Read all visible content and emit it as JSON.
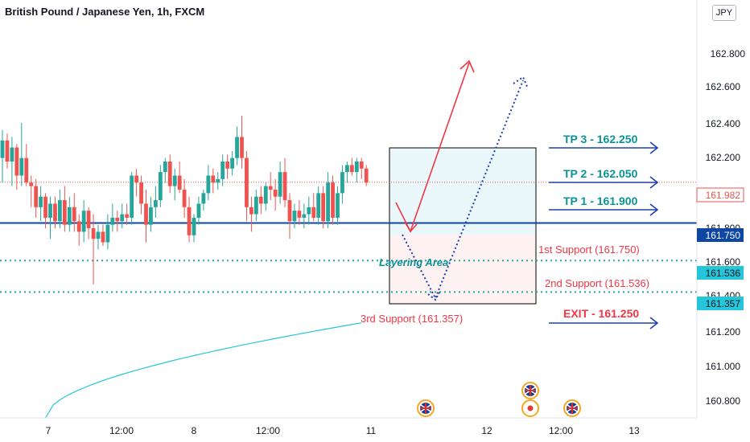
{
  "title": "British Pound / Japanese Yen, 1h, FXCM",
  "currency_button": "JPY",
  "colors": {
    "bull": "#26a69a",
    "bear": "#ef5350",
    "ma": "#26c6da",
    "support_line": "#0d47a1",
    "dotted_level": "#26a69a",
    "target": "#1565c0",
    "red_annot": "#f23645",
    "blue_arrow": "#1e40af",
    "teal_text": "#0a9396"
  },
  "chart_data": {
    "type": "candlestick",
    "title": "British Pound / Japanese Yen, 1h, FXCM",
    "x_tick_labels": [
      "7",
      "12:00",
      "8",
      "12:00",
      "11",
      "12",
      "12:00",
      "13"
    ],
    "y_tick_labels": [
      "162.800",
      "162.600",
      "162.400",
      "162.200",
      "161.800",
      "161.600",
      "161.400",
      "161.200",
      "161.000",
      "160.800"
    ],
    "y_range": [
      160.64,
      163.02
    ],
    "last_price": 161.982,
    "price_labels": [
      {
        "label": "161.982",
        "value": 161.982,
        "style": "red"
      },
      {
        "label": "161.750",
        "value": 161.75,
        "style": "navy"
      },
      {
        "label": "161.536",
        "value": 161.536,
        "style": "cyan"
      },
      {
        "label": "161.357",
        "value": 161.357,
        "style": "cyan"
      }
    ],
    "candles": [
      {
        "o": 162.12,
        "h": 162.28,
        "l": 161.98,
        "c": 162.22
      },
      {
        "o": 162.22,
        "h": 162.26,
        "l": 162.06,
        "c": 162.1
      },
      {
        "o": 162.1,
        "h": 162.24,
        "l": 161.96,
        "c": 162.18
      },
      {
        "o": 162.18,
        "h": 162.2,
        "l": 161.94,
        "c": 162.02
      },
      {
        "o": 162.02,
        "h": 162.32,
        "l": 161.96,
        "c": 162.12
      },
      {
        "o": 162.12,
        "h": 162.2,
        "l": 161.96,
        "c": 161.98
      },
      {
        "o": 161.98,
        "h": 162.02,
        "l": 161.84,
        "c": 161.96
      },
      {
        "o": 161.96,
        "h": 162.0,
        "l": 161.78,
        "c": 161.84
      },
      {
        "o": 161.84,
        "h": 161.96,
        "l": 161.76,
        "c": 161.9
      },
      {
        "o": 161.9,
        "h": 161.92,
        "l": 161.72,
        "c": 161.78
      },
      {
        "o": 161.78,
        "h": 161.9,
        "l": 161.66,
        "c": 161.86
      },
      {
        "o": 161.86,
        "h": 161.9,
        "l": 161.72,
        "c": 161.76
      },
      {
        "o": 161.76,
        "h": 161.94,
        "l": 161.72,
        "c": 161.88
      },
      {
        "o": 161.88,
        "h": 161.96,
        "l": 161.7,
        "c": 161.74
      },
      {
        "o": 161.74,
        "h": 161.9,
        "l": 161.7,
        "c": 161.84
      },
      {
        "o": 161.84,
        "h": 161.92,
        "l": 161.7,
        "c": 161.76
      },
      {
        "o": 161.76,
        "h": 161.8,
        "l": 161.62,
        "c": 161.7
      },
      {
        "o": 161.7,
        "h": 161.88,
        "l": 161.64,
        "c": 161.82
      },
      {
        "o": 161.82,
        "h": 161.84,
        "l": 161.66,
        "c": 161.72
      },
      {
        "o": 161.72,
        "h": 161.8,
        "l": 161.4,
        "c": 161.66
      },
      {
        "o": 161.66,
        "h": 161.74,
        "l": 161.6,
        "c": 161.7
      },
      {
        "o": 161.7,
        "h": 161.74,
        "l": 161.62,
        "c": 161.64
      },
      {
        "o": 161.64,
        "h": 161.8,
        "l": 161.6,
        "c": 161.74
      },
      {
        "o": 161.74,
        "h": 161.86,
        "l": 161.7,
        "c": 161.78
      },
      {
        "o": 161.78,
        "h": 161.82,
        "l": 161.7,
        "c": 161.76
      },
      {
        "o": 161.76,
        "h": 161.86,
        "l": 161.72,
        "c": 161.8
      },
      {
        "o": 161.8,
        "h": 161.86,
        "l": 161.74,
        "c": 161.78
      },
      {
        "o": 161.78,
        "h": 162.04,
        "l": 161.74,
        "c": 162.02
      },
      {
        "o": 162.02,
        "h": 162.06,
        "l": 161.9,
        "c": 161.98
      },
      {
        "o": 161.98,
        "h": 162.02,
        "l": 161.8,
        "c": 161.86
      },
      {
        "o": 161.86,
        "h": 161.94,
        "l": 161.64,
        "c": 161.74
      },
      {
        "o": 161.74,
        "h": 161.9,
        "l": 161.7,
        "c": 161.84
      },
      {
        "o": 161.84,
        "h": 161.96,
        "l": 161.78,
        "c": 161.88
      },
      {
        "o": 161.88,
        "h": 162.08,
        "l": 161.84,
        "c": 162.04
      },
      {
        "o": 162.04,
        "h": 162.12,
        "l": 161.98,
        "c": 162.1
      },
      {
        "o": 162.1,
        "h": 162.14,
        "l": 161.92,
        "c": 161.96
      },
      {
        "o": 161.96,
        "h": 162.06,
        "l": 161.88,
        "c": 162.02
      },
      {
        "o": 162.02,
        "h": 162.1,
        "l": 161.92,
        "c": 161.94
      },
      {
        "o": 161.94,
        "h": 162.0,
        "l": 161.78,
        "c": 161.84
      },
      {
        "o": 161.84,
        "h": 161.9,
        "l": 161.64,
        "c": 161.68
      },
      {
        "o": 161.68,
        "h": 161.8,
        "l": 161.64,
        "c": 161.78
      },
      {
        "o": 161.78,
        "h": 161.9,
        "l": 161.74,
        "c": 161.86
      },
      {
        "o": 161.86,
        "h": 161.94,
        "l": 161.82,
        "c": 161.92
      },
      {
        "o": 161.92,
        "h": 162.08,
        "l": 161.88,
        "c": 162.02
      },
      {
        "o": 162.02,
        "h": 162.06,
        "l": 161.92,
        "c": 161.98
      },
      {
        "o": 161.98,
        "h": 162.04,
        "l": 161.94,
        "c": 162.0
      },
      {
        "o": 162.0,
        "h": 162.14,
        "l": 161.96,
        "c": 162.1
      },
      {
        "o": 162.1,
        "h": 162.14,
        "l": 162.0,
        "c": 162.06
      },
      {
        "o": 162.06,
        "h": 162.16,
        "l": 162.02,
        "c": 162.12
      },
      {
        "o": 162.12,
        "h": 162.3,
        "l": 162.08,
        "c": 162.24
      },
      {
        "o": 162.24,
        "h": 162.36,
        "l": 162.06,
        "c": 162.12
      },
      {
        "o": 162.12,
        "h": 162.16,
        "l": 161.76,
        "c": 161.84
      },
      {
        "o": 161.84,
        "h": 161.9,
        "l": 161.7,
        "c": 161.8
      },
      {
        "o": 161.8,
        "h": 161.94,
        "l": 161.76,
        "c": 161.9
      },
      {
        "o": 161.9,
        "h": 161.96,
        "l": 161.8,
        "c": 161.86
      },
      {
        "o": 161.86,
        "h": 161.98,
        "l": 161.82,
        "c": 161.96
      },
      {
        "o": 161.96,
        "h": 162.04,
        "l": 161.88,
        "c": 161.94
      },
      {
        "o": 161.94,
        "h": 162.0,
        "l": 161.82,
        "c": 161.9
      },
      {
        "o": 161.9,
        "h": 162.1,
        "l": 161.86,
        "c": 162.04
      },
      {
        "o": 162.04,
        "h": 162.12,
        "l": 161.84,
        "c": 161.88
      },
      {
        "o": 161.88,
        "h": 161.92,
        "l": 161.66,
        "c": 161.76
      },
      {
        "o": 161.76,
        "h": 161.86,
        "l": 161.72,
        "c": 161.82
      },
      {
        "o": 161.82,
        "h": 161.88,
        "l": 161.74,
        "c": 161.78
      },
      {
        "o": 161.78,
        "h": 161.86,
        "l": 161.72,
        "c": 161.8
      },
      {
        "o": 161.8,
        "h": 161.9,
        "l": 161.74,
        "c": 161.84
      },
      {
        "o": 161.84,
        "h": 161.92,
        "l": 161.76,
        "c": 161.78
      },
      {
        "o": 161.78,
        "h": 161.96,
        "l": 161.74,
        "c": 161.92
      },
      {
        "o": 161.92,
        "h": 161.96,
        "l": 161.72,
        "c": 161.76
      },
      {
        "o": 161.76,
        "h": 162.04,
        "l": 161.72,
        "c": 161.98
      },
      {
        "o": 161.98,
        "h": 162.02,
        "l": 161.74,
        "c": 161.78
      },
      {
        "o": 161.78,
        "h": 161.96,
        "l": 161.74,
        "c": 161.92
      },
      {
        "o": 161.92,
        "h": 162.08,
        "l": 161.86,
        "c": 162.04
      },
      {
        "o": 162.04,
        "h": 162.1,
        "l": 161.98,
        "c": 162.08
      },
      {
        "o": 162.08,
        "h": 162.12,
        "l": 162.02,
        "c": 162.04
      },
      {
        "o": 162.04,
        "h": 162.12,
        "l": 161.98,
        "c": 162.1
      },
      {
        "o": 162.1,
        "h": 162.12,
        "l": 162.0,
        "c": 162.06
      },
      {
        "o": 162.06,
        "h": 162.08,
        "l": 161.96,
        "c": 161.98
      }
    ],
    "moving_average": {
      "points": [
        [
          9,
          160.64
        ],
        [
          75,
          161.18
        ]
      ]
    },
    "horizontal_levels": [
      {
        "value": 161.75,
        "style": "solid"
      },
      {
        "value": 161.536,
        "style": "dotted"
      },
      {
        "value": 161.357,
        "style": "dotted"
      },
      {
        "value": 161.982,
        "style": "price-line"
      }
    ],
    "layering_zone": {
      "top": 162.25,
      "mid": 161.75,
      "bottom": 161.357,
      "label": "Layering Area"
    },
    "annotations": [
      {
        "text": "TP 3 - 162.250",
        "value": 162.25,
        "color": "teal"
      },
      {
        "text": "TP 2 - 162.050",
        "value": 162.05,
        "color": "teal"
      },
      {
        "text": "TP 1 - 161.900",
        "value": 161.9,
        "color": "teal"
      },
      {
        "text": "1st Support (161.750)",
        "value": 161.75,
        "color": "red"
      },
      {
        "text": "2nd Support (161.536)",
        "value": 161.536,
        "color": "red"
      },
      {
        "text": "3rd Support (161.357)",
        "value": 161.357,
        "color": "red"
      },
      {
        "text": "EXIT - 161.250",
        "value": 161.25,
        "color": "red"
      }
    ],
    "events": [
      {
        "icon": "uk-flag-icon"
      },
      {
        "icon": "uk-flag-icon"
      },
      {
        "icon": "red-dot-event-icon"
      },
      {
        "icon": "uk-flag-icon"
      }
    ]
  }
}
